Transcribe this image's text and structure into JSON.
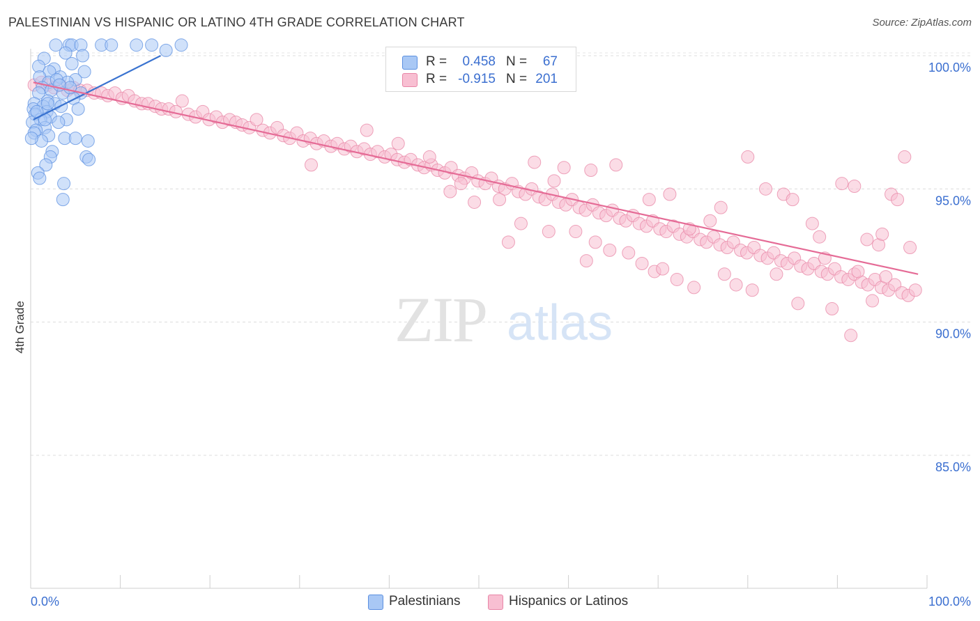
{
  "header": {
    "title": "PALESTINIAN VS HISPANIC OR LATINO 4TH GRADE CORRELATION CHART",
    "source": "Source: ZipAtlas.com"
  },
  "watermark": {
    "zip": "ZIP",
    "atlas": "atlas"
  },
  "legend": {
    "series": [
      {
        "r_label": "R =",
        "r_value": "0.458",
        "n_label": "N =",
        "n_value": "67",
        "color": "#a9c8f5",
        "edge": "#5b8fe0"
      },
      {
        "r_label": "R =",
        "r_value": "-0.915",
        "n_label": "N =",
        "n_value": "201",
        "color": "#f8bfd2",
        "edge": "#e885a6"
      }
    ]
  },
  "bottom_legend": [
    {
      "label": "Palestinians",
      "color": "#a9c8f5",
      "edge": "#5b8fe0"
    },
    {
      "label": "Hispanics or Latinos",
      "color": "#f8bfd2",
      "edge": "#e885a6"
    }
  ],
  "chart_data": {
    "type": "scatter",
    "title": "PALESTINIAN VS HISPANIC OR LATINO 4TH GRADE CORRELATION CHART",
    "xlabel": "",
    "ylabel": "4th Grade",
    "xlim": [
      0,
      100
    ],
    "ylim": [
      80,
      100.8
    ],
    "x_tick_labels": [
      "0.0%",
      "100.0%"
    ],
    "y_ticks": [
      85,
      90,
      95,
      100
    ],
    "y_tick_labels": [
      "85.0%",
      "90.0%",
      "95.0%",
      "100.0%"
    ],
    "grid": "horizontal dashed",
    "legend_position": "top-center",
    "series": [
      {
        "name": "Palestinians",
        "color": "#5b8fe0",
        "fill": "#a9c8f5",
        "trend": {
          "x": [
            0.3,
            14.5
          ],
          "y": [
            97.6,
            100.0
          ]
        },
        "points": [
          [
            2.8,
            100.4
          ],
          [
            4.3,
            100.4
          ],
          [
            4.6,
            100.4
          ],
          [
            5.6,
            100.4
          ],
          [
            7.9,
            100.4
          ],
          [
            9.0,
            100.4
          ],
          [
            11.8,
            100.4
          ],
          [
            13.5,
            100.4
          ],
          [
            16.8,
            100.4
          ],
          [
            15.1,
            100.2
          ],
          [
            3.9,
            100.1
          ],
          [
            5.8,
            100.0
          ],
          [
            1.5,
            99.9
          ],
          [
            4.6,
            99.7
          ],
          [
            0.9,
            99.6
          ],
          [
            2.6,
            99.5
          ],
          [
            2.1,
            99.4
          ],
          [
            6.0,
            99.4
          ],
          [
            1.0,
            99.2
          ],
          [
            3.3,
            99.2
          ],
          [
            5.0,
            99.1
          ],
          [
            2.0,
            99.0
          ],
          [
            4.1,
            99.0
          ],
          [
            1.3,
            98.8
          ],
          [
            2.3,
            98.7
          ],
          [
            3.6,
            98.6
          ],
          [
            5.6,
            98.6
          ],
          [
            0.9,
            98.6
          ],
          [
            4.8,
            98.4
          ],
          [
            1.9,
            98.3
          ],
          [
            2.7,
            98.2
          ],
          [
            0.4,
            98.2
          ],
          [
            3.4,
            98.1
          ],
          [
            1.4,
            98.1
          ],
          [
            0.3,
            98.0
          ],
          [
            5.3,
            98.0
          ],
          [
            1.8,
            97.9
          ],
          [
            0.5,
            97.8
          ],
          [
            2.2,
            97.7
          ],
          [
            4.0,
            97.6
          ],
          [
            1.1,
            97.6
          ],
          [
            0.2,
            97.5
          ],
          [
            3.1,
            97.5
          ],
          [
            1.6,
            97.3
          ],
          [
            0.6,
            97.2
          ],
          [
            0.4,
            97.1
          ],
          [
            2.0,
            97.0
          ],
          [
            1.2,
            96.8
          ],
          [
            0.1,
            96.9
          ],
          [
            3.8,
            96.9
          ],
          [
            2.4,
            96.4
          ],
          [
            6.4,
            96.8
          ],
          [
            6.2,
            96.2
          ],
          [
            6.5,
            96.1
          ],
          [
            2.2,
            96.2
          ],
          [
            1.7,
            95.9
          ],
          [
            0.8,
            95.6
          ],
          [
            3.7,
            95.2
          ],
          [
            1.0,
            95.4
          ],
          [
            5.0,
            96.9
          ],
          [
            4.4,
            98.8
          ],
          [
            2.9,
            99.1
          ],
          [
            3.2,
            98.9
          ],
          [
            1.9,
            98.2
          ],
          [
            0.7,
            97.9
          ],
          [
            1.6,
            97.6
          ],
          [
            3.6,
            94.6
          ]
        ]
      },
      {
        "name": "Hispanics or Latinos",
        "color": "#e885a6",
        "fill": "#f8bfd2",
        "trend": {
          "x": [
            0.3,
            99.0
          ],
          "y": [
            99.0,
            91.8
          ]
        },
        "points": [
          [
            0.4,
            98.9
          ],
          [
            1.2,
            99.0
          ],
          [
            1.9,
            98.9
          ],
          [
            2.6,
            98.8
          ],
          [
            3.3,
            98.9
          ],
          [
            4.1,
            98.7
          ],
          [
            4.8,
            98.8
          ],
          [
            5.5,
            98.7
          ],
          [
            6.3,
            98.7
          ],
          [
            7.1,
            98.6
          ],
          [
            7.9,
            98.6
          ],
          [
            8.6,
            98.5
          ],
          [
            9.4,
            98.6
          ],
          [
            10.2,
            98.4
          ],
          [
            10.9,
            98.5
          ],
          [
            11.6,
            98.3
          ],
          [
            12.4,
            98.2
          ],
          [
            13.1,
            98.2
          ],
          [
            13.9,
            98.1
          ],
          [
            14.6,
            98.0
          ],
          [
            15.4,
            98.0
          ],
          [
            16.2,
            97.9
          ],
          [
            16.9,
            98.3
          ],
          [
            17.6,
            97.8
          ],
          [
            18.4,
            97.7
          ],
          [
            19.2,
            97.9
          ],
          [
            19.9,
            97.6
          ],
          [
            20.7,
            97.7
          ],
          [
            21.4,
            97.5
          ],
          [
            22.2,
            97.6
          ],
          [
            22.9,
            97.5
          ],
          [
            23.6,
            97.4
          ],
          [
            24.4,
            97.3
          ],
          [
            25.2,
            97.6
          ],
          [
            25.9,
            97.2
          ],
          [
            26.7,
            97.1
          ],
          [
            27.5,
            97.3
          ],
          [
            28.2,
            97.0
          ],
          [
            28.9,
            96.9
          ],
          [
            29.7,
            97.1
          ],
          [
            30.4,
            96.8
          ],
          [
            31.2,
            96.9
          ],
          [
            31.9,
            96.7
          ],
          [
            32.7,
            96.8
          ],
          [
            33.5,
            96.6
          ],
          [
            34.2,
            96.7
          ],
          [
            35.0,
            96.5
          ],
          [
            35.7,
            96.6
          ],
          [
            36.4,
            96.4
          ],
          [
            37.2,
            96.5
          ],
          [
            37.9,
            96.3
          ],
          [
            38.7,
            96.4
          ],
          [
            39.5,
            96.2
          ],
          [
            40.2,
            96.3
          ],
          [
            40.9,
            96.1
          ],
          [
            41.7,
            96.0
          ],
          [
            42.4,
            96.1
          ],
          [
            43.2,
            95.9
          ],
          [
            43.9,
            95.8
          ],
          [
            44.7,
            95.9
          ],
          [
            45.4,
            95.7
          ],
          [
            46.2,
            95.6
          ],
          [
            46.9,
            95.8
          ],
          [
            47.7,
            95.5
          ],
          [
            48.4,
            95.4
          ],
          [
            49.2,
            95.6
          ],
          [
            49.9,
            95.3
          ],
          [
            50.7,
            95.2
          ],
          [
            51.4,
            95.4
          ],
          [
            52.2,
            95.1
          ],
          [
            52.9,
            95.0
          ],
          [
            53.7,
            95.2
          ],
          [
            54.4,
            94.9
          ],
          [
            55.2,
            94.8
          ],
          [
            55.9,
            95.0
          ],
          [
            56.7,
            94.7
          ],
          [
            57.4,
            94.6
          ],
          [
            58.2,
            94.8
          ],
          [
            58.9,
            94.5
          ],
          [
            59.7,
            94.4
          ],
          [
            60.4,
            94.6
          ],
          [
            61.2,
            94.3
          ],
          [
            61.9,
            94.2
          ],
          [
            62.7,
            94.4
          ],
          [
            63.4,
            94.1
          ],
          [
            64.2,
            94.0
          ],
          [
            64.9,
            94.2
          ],
          [
            65.7,
            93.9
          ],
          [
            66.4,
            93.8
          ],
          [
            67.2,
            94.0
          ],
          [
            67.9,
            93.7
          ],
          [
            68.7,
            93.6
          ],
          [
            69.4,
            93.8
          ],
          [
            70.2,
            93.5
          ],
          [
            70.9,
            93.4
          ],
          [
            71.7,
            93.6
          ],
          [
            72.4,
            93.3
          ],
          [
            73.2,
            93.2
          ],
          [
            73.9,
            93.4
          ],
          [
            74.7,
            93.1
          ],
          [
            75.4,
            93.0
          ],
          [
            76.2,
            93.2
          ],
          [
            76.9,
            92.9
          ],
          [
            77.7,
            92.8
          ],
          [
            78.4,
            93.0
          ],
          [
            79.2,
            92.7
          ],
          [
            79.9,
            92.6
          ],
          [
            80.7,
            92.8
          ],
          [
            81.4,
            92.5
          ],
          [
            82.2,
            92.4
          ],
          [
            82.9,
            92.6
          ],
          [
            83.7,
            92.3
          ],
          [
            84.4,
            92.2
          ],
          [
            85.2,
            92.4
          ],
          [
            85.9,
            92.1
          ],
          [
            86.7,
            92.0
          ],
          [
            87.4,
            92.2
          ],
          [
            88.2,
            91.9
          ],
          [
            88.9,
            91.8
          ],
          [
            89.7,
            92.0
          ],
          [
            90.4,
            91.7
          ],
          [
            91.2,
            91.6
          ],
          [
            91.9,
            91.8
          ],
          [
            92.7,
            91.5
          ],
          [
            93.4,
            91.4
          ],
          [
            94.2,
            91.6
          ],
          [
            94.9,
            91.3
          ],
          [
            95.7,
            91.2
          ],
          [
            96.4,
            91.4
          ],
          [
            97.2,
            91.1
          ],
          [
            97.9,
            91.0
          ],
          [
            98.7,
            91.2
          ],
          [
            31.3,
            95.9
          ],
          [
            37.5,
            97.2
          ],
          [
            41.0,
            96.7
          ],
          [
            44.5,
            96.2
          ],
          [
            46.8,
            94.9
          ],
          [
            48.0,
            95.2
          ],
          [
            49.5,
            94.5
          ],
          [
            52.3,
            94.6
          ],
          [
            54.7,
            93.7
          ],
          [
            56.2,
            96.0
          ],
          [
            57.8,
            93.4
          ],
          [
            59.5,
            95.8
          ],
          [
            62.5,
            95.7
          ],
          [
            63.0,
            93.0
          ],
          [
            64.6,
            92.7
          ],
          [
            66.7,
            92.6
          ],
          [
            68.2,
            92.2
          ],
          [
            69.6,
            91.9
          ],
          [
            71.3,
            94.8
          ],
          [
            72.1,
            91.6
          ],
          [
            74.0,
            91.3
          ],
          [
            75.8,
            93.8
          ],
          [
            77.4,
            91.8
          ],
          [
            78.7,
            91.4
          ],
          [
            80.5,
            91.2
          ],
          [
            82.0,
            95.0
          ],
          [
            84.0,
            94.8
          ],
          [
            85.6,
            90.7
          ],
          [
            87.2,
            93.7
          ],
          [
            88.0,
            93.2
          ],
          [
            89.4,
            90.5
          ],
          [
            90.5,
            95.2
          ],
          [
            91.5,
            89.5
          ],
          [
            92.3,
            91.9
          ],
          [
            93.3,
            93.1
          ],
          [
            94.6,
            92.9
          ],
          [
            95.4,
            91.7
          ],
          [
            96.0,
            94.8
          ],
          [
            97.5,
            96.2
          ],
          [
            98.1,
            92.8
          ],
          [
            93.9,
            90.8
          ],
          [
            96.7,
            94.6
          ],
          [
            60.8,
            93.4
          ],
          [
            65.3,
            95.9
          ],
          [
            69.0,
            94.6
          ],
          [
            73.5,
            93.5
          ],
          [
            80.0,
            96.2
          ],
          [
            85.0,
            94.6
          ],
          [
            88.6,
            92.4
          ],
          [
            91.9,
            95.1
          ],
          [
            95.0,
            93.3
          ],
          [
            83.2,
            91.8
          ],
          [
            77.0,
            94.3
          ],
          [
            70.5,
            92.0
          ],
          [
            53.3,
            93.0
          ],
          [
            58.4,
            95.3
          ],
          [
            62.0,
            92.3
          ]
        ]
      }
    ]
  }
}
